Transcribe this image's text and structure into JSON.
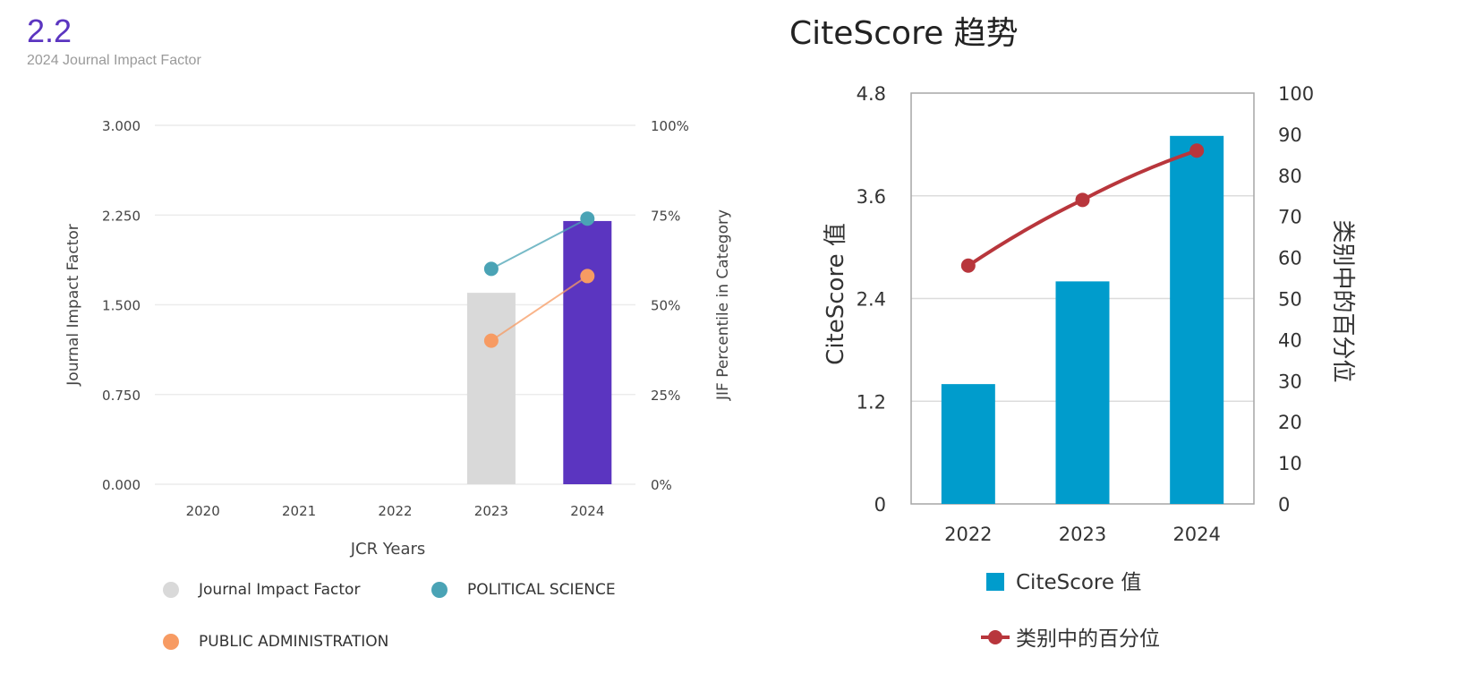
{
  "jif": {
    "value": "2.2",
    "subtitle": "2024 Journal Impact Factor",
    "legend": [
      {
        "label": "Journal Impact Factor",
        "color": "#d9d9d9"
      },
      {
        "label": "POLITICAL SCIENCE",
        "color": "#4aa3b5"
      },
      {
        "label": "PUBLIC ADMINISTRATION",
        "color": "#f79b63"
      }
    ]
  },
  "citescore": {
    "title": "CiteScore 趋势",
    "legend": [
      {
        "label": "CiteScore 值",
        "color": "#009ccc"
      },
      {
        "label": "类别中的百分位",
        "color": "#b8363c"
      }
    ]
  },
  "chart_data": [
    {
      "type": "bar",
      "title": "2024 Journal Impact Factor",
      "xlabel": "JCR Years",
      "ylabel": "Journal Impact Factor",
      "y2label": "JIF Percentile in Category",
      "categories": [
        "2020",
        "2021",
        "2022",
        "2023",
        "2024"
      ],
      "ylim": [
        0,
        3.0
      ],
      "yticks": [
        "0.000",
        "0.750",
        "1.500",
        "2.250",
        "3.000"
      ],
      "y2lim": [
        0,
        100
      ],
      "y2ticks": [
        "0%",
        "25%",
        "50%",
        "75%",
        "100%"
      ],
      "grid": true,
      "legend_position": "bottom",
      "series": [
        {
          "name": "Journal Impact Factor",
          "kind": "bar",
          "axis": "left",
          "values": [
            null,
            null,
            null,
            1.6,
            2.2
          ],
          "colors": [
            "#d9d9d9",
            "#d9d9d9",
            "#d9d9d9",
            "#d9d9d9",
            "#5b35c0"
          ]
        },
        {
          "name": "POLITICAL SCIENCE",
          "kind": "line",
          "axis": "right",
          "values": [
            null,
            null,
            null,
            60,
            74
          ],
          "color": "#4aa3b5"
        },
        {
          "name": "PUBLIC ADMINISTRATION",
          "kind": "line",
          "axis": "right",
          "values": [
            null,
            null,
            null,
            40,
            58
          ],
          "color": "#f79b63"
        }
      ]
    },
    {
      "type": "bar",
      "title": "CiteScore 趋势",
      "xlabel": "",
      "ylabel": "CiteScore 值",
      "y2label": "类别中的百分位",
      "categories": [
        "2022",
        "2023",
        "2024"
      ],
      "ylim": [
        0,
        4.8
      ],
      "yticks": [
        "0",
        "1.2",
        "2.4",
        "3.6",
        "4.8"
      ],
      "y2lim": [
        0,
        100
      ],
      "y2ticks": [
        "0",
        "10",
        "20",
        "30",
        "40",
        "50",
        "60",
        "70",
        "80",
        "90",
        "100"
      ],
      "grid": true,
      "legend_position": "bottom",
      "series": [
        {
          "name": "CiteScore 值",
          "kind": "bar",
          "axis": "left",
          "values": [
            1.4,
            2.6,
            4.3
          ],
          "color": "#009ccc"
        },
        {
          "name": "类别中的百分位",
          "kind": "line",
          "axis": "right",
          "values": [
            58,
            74,
            86
          ],
          "color": "#b8363c"
        }
      ]
    }
  ]
}
